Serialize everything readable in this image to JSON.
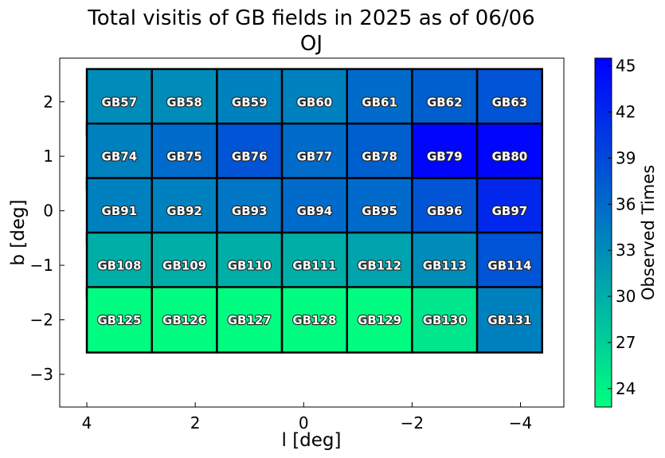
{
  "chart_data": {
    "type": "heatmap",
    "title": "Total visitis of GB fields in 2025 as of 06/06",
    "subtitle": "OJ",
    "xlabel": "l [deg]",
    "ylabel": "b [deg]",
    "colorbar_label": "Observed Times",
    "xlim": [
      4.5,
      -4.8
    ],
    "ylim": [
      -3.6,
      2.8
    ],
    "xticks": [
      4,
      2,
      0,
      -2,
      -4
    ],
    "xtick_labels": [
      "4",
      "2",
      "0",
      "−2",
      "−4"
    ],
    "yticks": [
      2,
      1,
      0,
      -1,
      -2,
      -3
    ],
    "ytick_labels": [
      "2",
      "1",
      "0",
      "−1",
      "−2",
      "−3"
    ],
    "colorbar": {
      "min": 22.8,
      "max": 45.5,
      "ticks": [
        24,
        27,
        30,
        33,
        36,
        39,
        42,
        45
      ],
      "tick_labels": [
        "24",
        "27",
        "30",
        "33",
        "36",
        "39",
        "42",
        "45"
      ],
      "colormap": "winter_r",
      "low_color": "#00ff80",
      "high_color": "#0000ff"
    },
    "grid": false,
    "cell_width_deg": 1.2,
    "cell_height_deg": 1.2,
    "column_centers_l": [
      3.4,
      2.2,
      1.0,
      -0.2,
      -1.4,
      -2.6,
      -3.8
    ],
    "row_centers_b": [
      2.0,
      1.0,
      0.0,
      -1.0,
      -2.0
    ],
    "fields": [
      {
        "name": "GB57",
        "l": 3.4,
        "b": 2.0,
        "value": 33
      },
      {
        "name": "GB58",
        "l": 2.2,
        "b": 2.0,
        "value": 33
      },
      {
        "name": "GB59",
        "l": 1.0,
        "b": 2.0,
        "value": 34
      },
      {
        "name": "GB60",
        "l": -0.2,
        "b": 2.0,
        "value": 34
      },
      {
        "name": "GB61",
        "l": -1.4,
        "b": 2.0,
        "value": 36
      },
      {
        "name": "GB62",
        "l": -2.6,
        "b": 2.0,
        "value": 37
      },
      {
        "name": "GB63",
        "l": -3.8,
        "b": 2.0,
        "value": 38
      },
      {
        "name": "GB74",
        "l": 3.4,
        "b": 1.0,
        "value": 34
      },
      {
        "name": "GB75",
        "l": 2.2,
        "b": 1.0,
        "value": 36
      },
      {
        "name": "GB76",
        "l": 1.0,
        "b": 1.0,
        "value": 38
      },
      {
        "name": "GB77",
        "l": -0.2,
        "b": 1.0,
        "value": 36
      },
      {
        "name": "GB78",
        "l": -1.4,
        "b": 1.0,
        "value": 37
      },
      {
        "name": "GB79",
        "l": -2.6,
        "b": 1.0,
        "value": 45
      },
      {
        "name": "GB80",
        "l": -3.8,
        "b": 1.0,
        "value": 45
      },
      {
        "name": "GB91",
        "l": 3.4,
        "b": 0.0,
        "value": 34
      },
      {
        "name": "GB92",
        "l": 2.2,
        "b": 0.0,
        "value": 34
      },
      {
        "name": "GB93",
        "l": 1.0,
        "b": 0.0,
        "value": 35
      },
      {
        "name": "GB94",
        "l": -0.2,
        "b": 0.0,
        "value": 36
      },
      {
        "name": "GB95",
        "l": -1.4,
        "b": 0.0,
        "value": 36
      },
      {
        "name": "GB96",
        "l": -2.6,
        "b": 0.0,
        "value": 38
      },
      {
        "name": "GB97",
        "l": -3.8,
        "b": 0.0,
        "value": 42
      },
      {
        "name": "GB108",
        "l": 3.4,
        "b": -1.0,
        "value": 30
      },
      {
        "name": "GB109",
        "l": 2.2,
        "b": -1.0,
        "value": 30
      },
      {
        "name": "GB110",
        "l": 1.0,
        "b": -1.0,
        "value": 30
      },
      {
        "name": "GB111",
        "l": -0.2,
        "b": -1.0,
        "value": 30
      },
      {
        "name": "GB112",
        "l": -1.4,
        "b": -1.0,
        "value": 31
      },
      {
        "name": "GB113",
        "l": -2.6,
        "b": -1.0,
        "value": 33
      },
      {
        "name": "GB114",
        "l": -3.8,
        "b": -1.0,
        "value": 38
      },
      {
        "name": "GB125",
        "l": 3.4,
        "b": -2.0,
        "value": 23
      },
      {
        "name": "GB126",
        "l": 2.2,
        "b": -2.0,
        "value": 23
      },
      {
        "name": "GB127",
        "l": 1.0,
        "b": -2.0,
        "value": 23
      },
      {
        "name": "GB128",
        "l": -0.2,
        "b": -2.0,
        "value": 23
      },
      {
        "name": "GB129",
        "l": -1.4,
        "b": -2.0,
        "value": 23
      },
      {
        "name": "GB130",
        "l": -2.6,
        "b": -2.0,
        "value": 25
      },
      {
        "name": "GB131",
        "l": -3.8,
        "b": -2.0,
        "value": 34
      }
    ]
  }
}
